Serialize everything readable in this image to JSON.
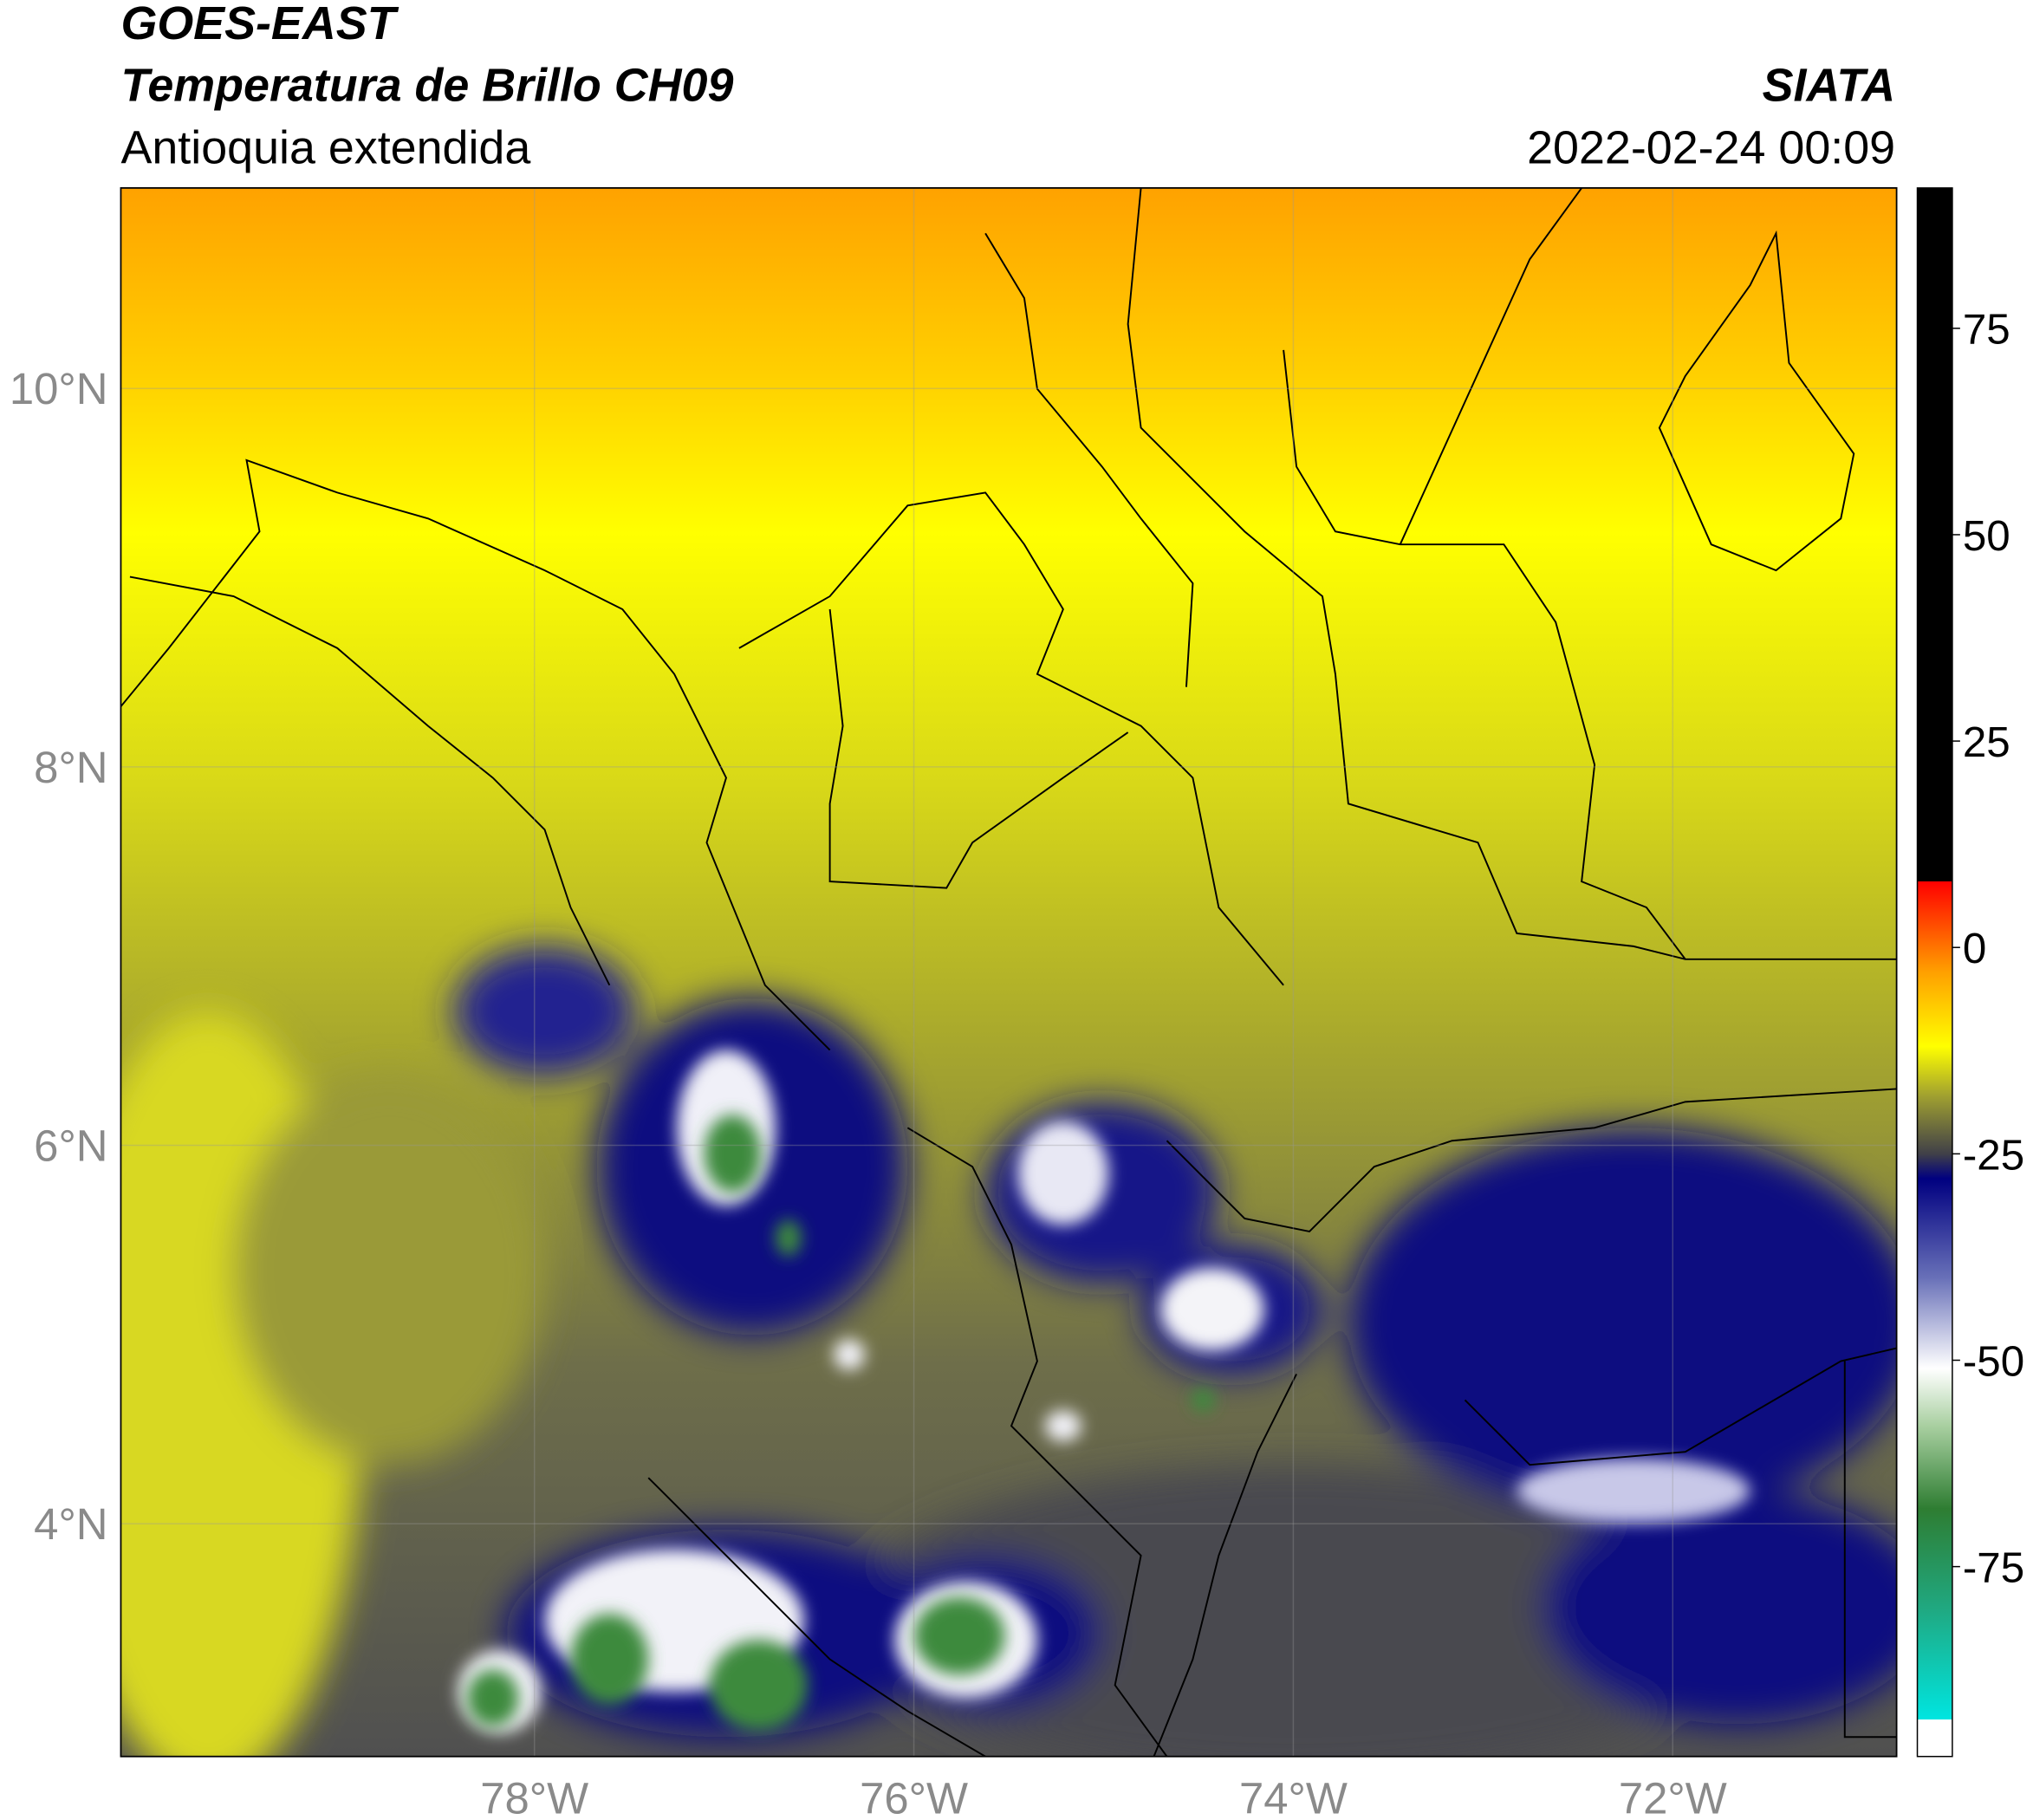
{
  "header": {
    "satellite": "GOES-EAST",
    "product": "Temperatura de Brillo CH09",
    "region": "Antioquia extendida",
    "agency": "SIATA",
    "datetime": "2022-02-24 00:09"
  },
  "map": {
    "xlim": [
      -80.18,
      -70.82
    ],
    "ylim": [
      2.77,
      11.06
    ],
    "grid": true,
    "xticks": [
      {
        "value": -78,
        "label": "78°W"
      },
      {
        "value": -76,
        "label": "76°W"
      },
      {
        "value": -74,
        "label": "74°W"
      },
      {
        "value": -72,
        "label": "72°W"
      }
    ],
    "yticks": [
      {
        "value": 10,
        "label": "10°N"
      },
      {
        "value": 8,
        "label": "8°N"
      },
      {
        "value": 6,
        "label": "6°N"
      },
      {
        "value": 4,
        "label": "4°N"
      }
    ]
  },
  "colorbar": {
    "clim": [
      -98,
      92
    ],
    "ticks": [
      75,
      50,
      25,
      0,
      -25,
      -50,
      -75
    ],
    "stops": [
      {
        "value": -98,
        "color": "#ffffff"
      },
      {
        "value": -93.5,
        "color": "#ffffff"
      },
      {
        "value": -93.5,
        "color": "#00e5e0"
      },
      {
        "value": -80,
        "color": "#20a880"
      },
      {
        "value": -68,
        "color": "#2e7d32"
      },
      {
        "value": -58,
        "color": "#a8cfa0"
      },
      {
        "value": -51,
        "color": "#ffffff"
      },
      {
        "value": -40,
        "color": "#6870b8"
      },
      {
        "value": -28,
        "color": "#000080"
      },
      {
        "value": -25,
        "color": "#404048"
      },
      {
        "value": -18,
        "color": "#a0a030"
      },
      {
        "value": -12,
        "color": "#ffff00"
      },
      {
        "value": -3,
        "color": "#ffa000"
      },
      {
        "value": 8,
        "color": "#ff0000"
      },
      {
        "value": 8,
        "color": "#000000"
      },
      {
        "value": 92,
        "color": "#000000"
      }
    ]
  }
}
